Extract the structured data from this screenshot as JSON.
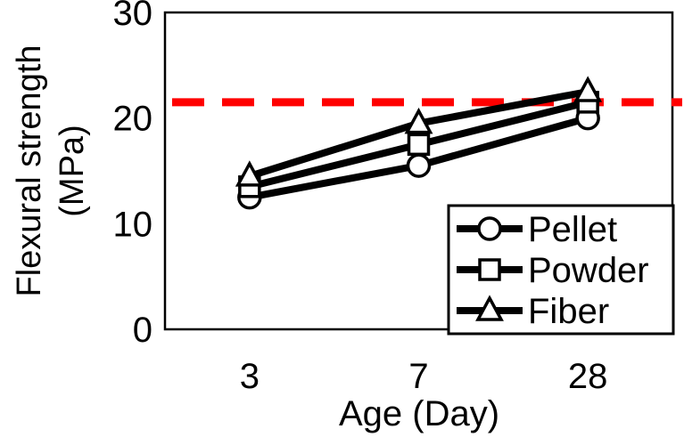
{
  "chart_data": {
    "type": "line",
    "title": "",
    "xlabel": "Age (Day)",
    "ylabel": "Flexural strength (MPa)",
    "ylabel_lines": [
      "Flexural strength",
      "(MPa)"
    ],
    "categories": [
      "3",
      "7",
      "28"
    ],
    "series": [
      {
        "name": "Pellet",
        "marker": "circle",
        "values": [
          12.5,
          15.5,
          20.0
        ]
      },
      {
        "name": "Powder",
        "marker": "square",
        "values": [
          13.5,
          17.5,
          21.5
        ]
      },
      {
        "name": "Fiber",
        "marker": "triangle",
        "values": [
          14.5,
          19.5,
          22.5
        ]
      }
    ],
    "ylim": [
      0,
      30
    ],
    "yticks": [
      0,
      10,
      20,
      30
    ],
    "reference_line": {
      "value": 21.5,
      "color": "#ff0000",
      "style": "dashed"
    },
    "grid": false,
    "legend_position": "bottom-right",
    "line_color": "#000000",
    "marker_fill": "#ffffff",
    "text_color": "#000000"
  }
}
